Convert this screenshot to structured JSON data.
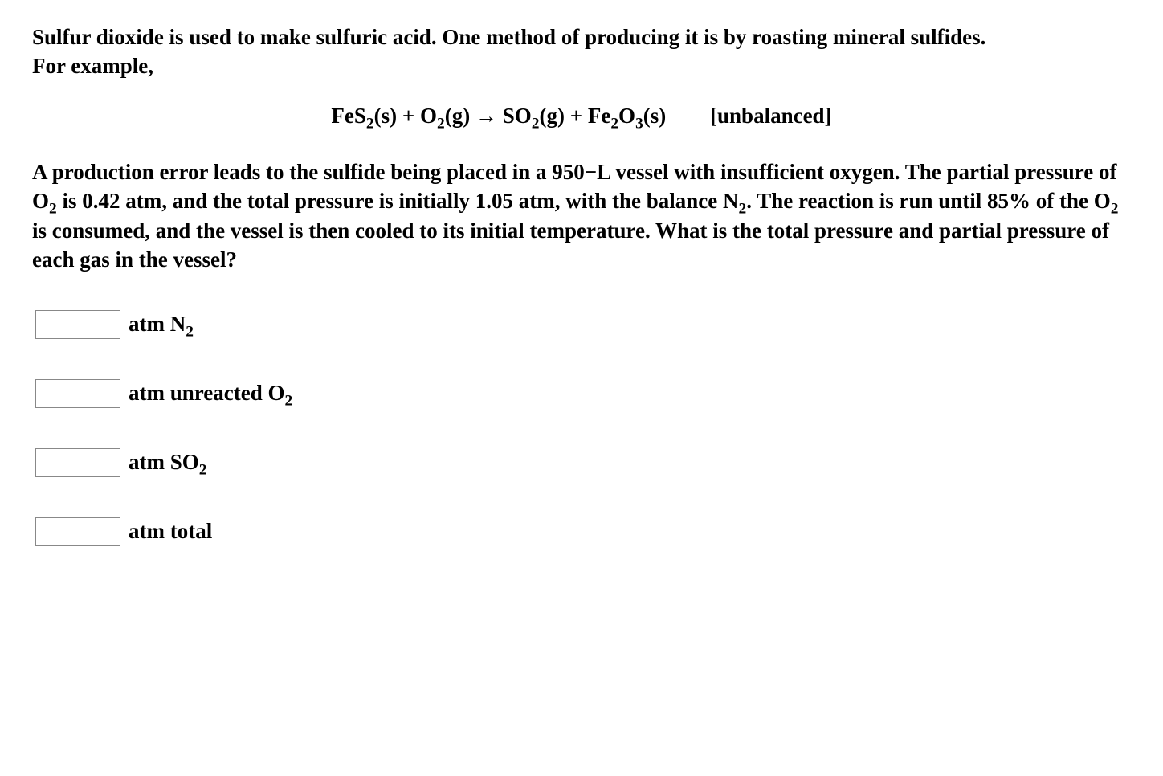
{
  "intro": {
    "line1_a": "Sulfur dioxide is used to make sulfuric acid. One method of producing it is by roasting mineral sulfides.",
    "line1_b": "For example,"
  },
  "equation": {
    "r1_sp": "FeS",
    "r1_sub": "2",
    "r1_state": "(s) + O",
    "r2_sub": "2",
    "r2_state": "(g) → SO",
    "p1_sub": "2",
    "p1_state": "(g) + Fe",
    "p2_sub": "2",
    "p2_o": "O",
    "p2_sub2": "3",
    "p2_state": "(s)",
    "note": "[unbalanced]"
  },
  "body": {
    "seg1": "A production error leads to the sulfide being placed in a 950−L vessel with insufficient oxygen. The partial pressure of O",
    "sub1": "2",
    "seg2": " is 0.42 atm, and the total pressure is initially 1.05 atm, with the balance N",
    "sub2": "2",
    "seg3": ". The reaction is run until 85% of the O",
    "sub3": "2",
    "seg4": " is consumed, and the vessel is then cooled to its initial temperature. What is the total pressure and partial pressure of each gas in the vessel?"
  },
  "answers": {
    "n2_value": "",
    "n2_label_pre": "atm N",
    "n2_label_sub": "2",
    "o2_value": "",
    "o2_label_pre": "atm unreacted O",
    "o2_label_sub": "2",
    "so2_value": "",
    "so2_label_pre": "atm SO",
    "so2_label_sub": "2",
    "total_value": "",
    "total_label": "atm total"
  }
}
